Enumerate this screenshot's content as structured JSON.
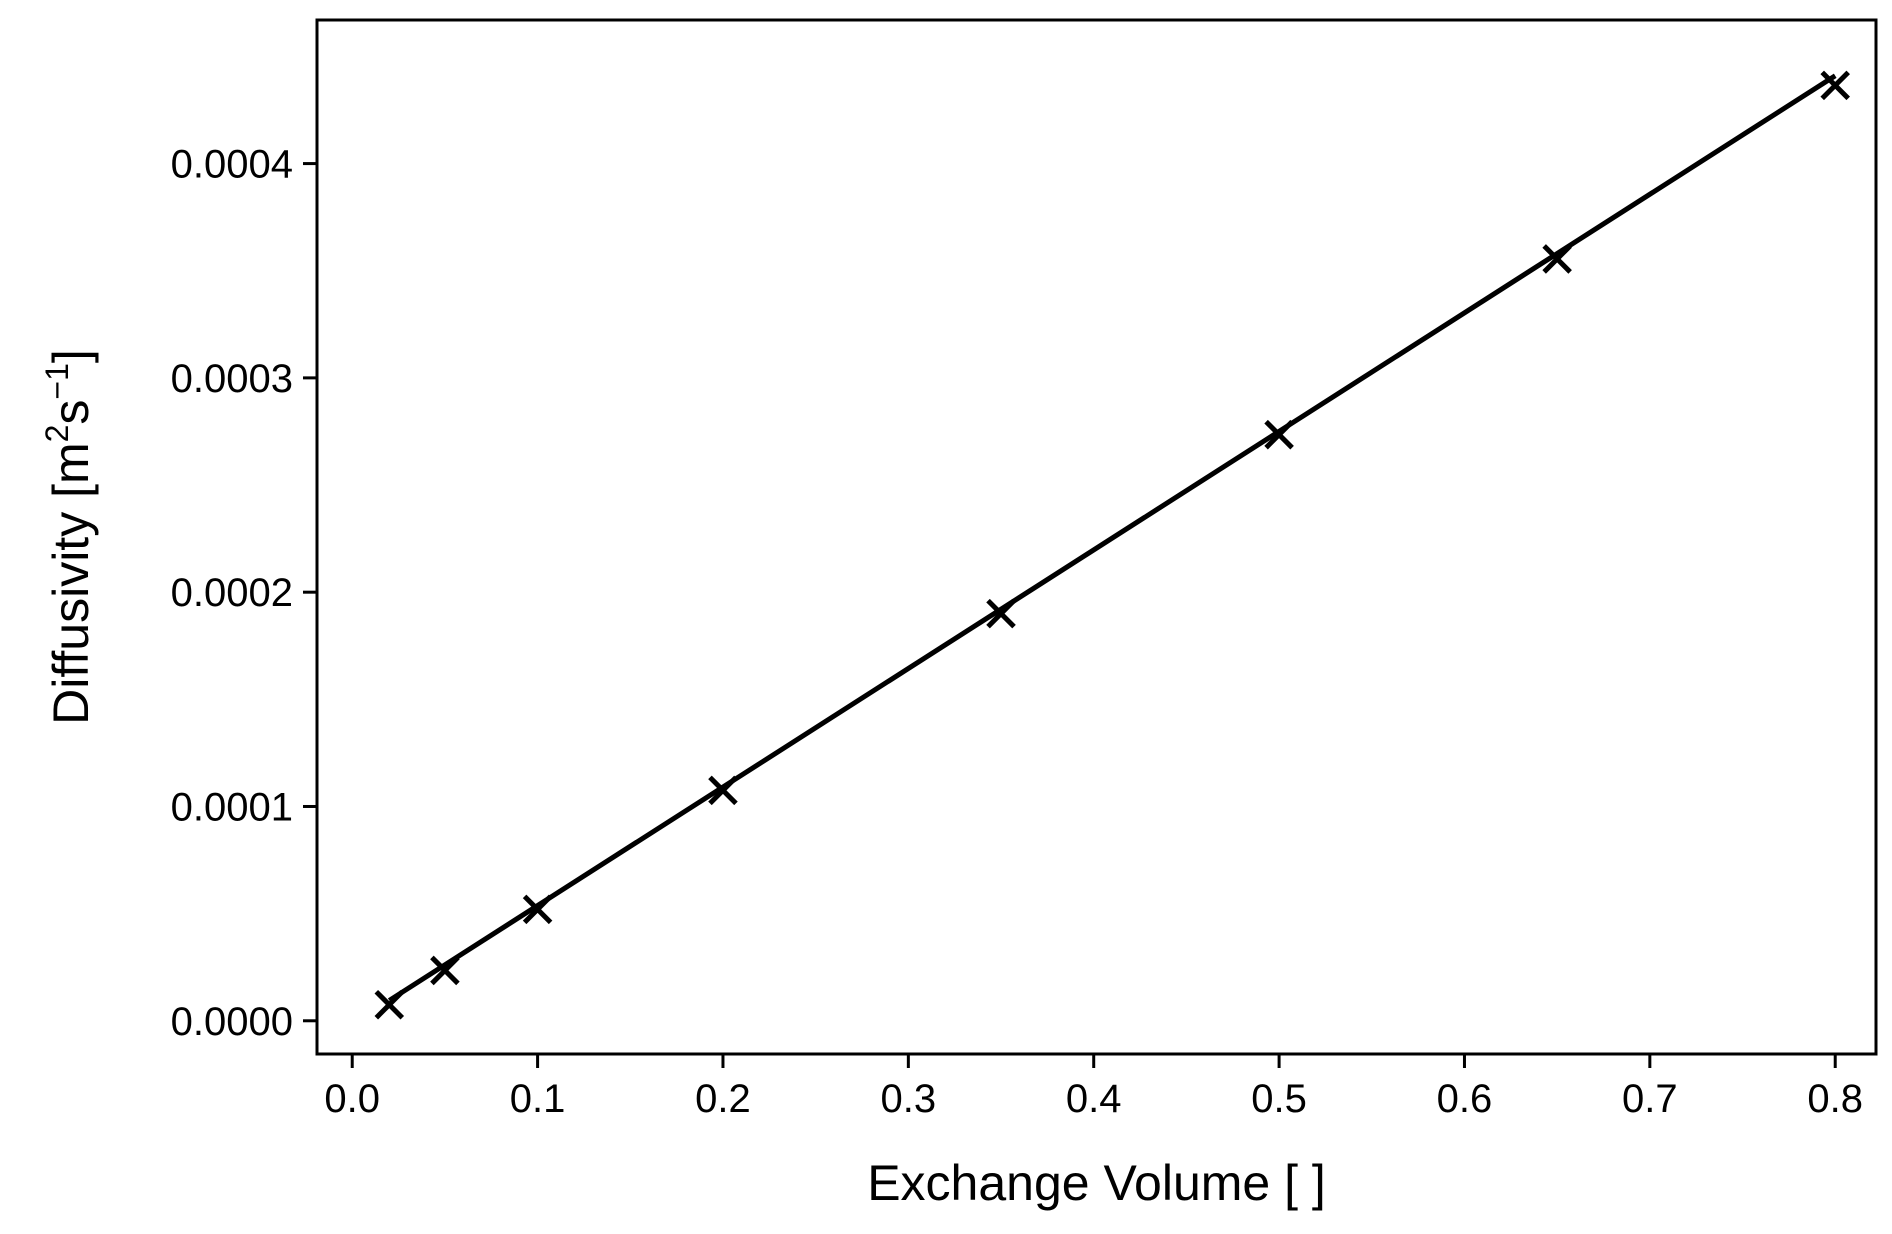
{
  "chart_data": {
    "type": "scatter",
    "title": "",
    "xlabel": "Exchange Volume [ ]",
    "ylabel": {
      "prefix": "Diffusivity [m",
      "sup1": "2",
      "mid": "s",
      "sup2": "−1",
      "suffix": "]"
    },
    "xlim": [
      -0.019,
      0.822
    ],
    "ylim": [
      -1.55e-05,
      0.000467
    ],
    "xticks": [
      0.0,
      0.1,
      0.2,
      0.3,
      0.4,
      0.5,
      0.6,
      0.7,
      0.8
    ],
    "xtick_labels": [
      "0.0",
      "0.1",
      "0.2",
      "0.3",
      "0.4",
      "0.5",
      "0.6",
      "0.7",
      "0.8"
    ],
    "yticks": [
      0.0,
      0.0001,
      0.0002,
      0.0003,
      0.0004
    ],
    "ytick_labels": [
      "0.0000",
      "0.0001",
      "0.0002",
      "0.0003",
      "0.0004"
    ],
    "grid": false,
    "series": [
      {
        "marker": "x",
        "color": "#000000",
        "x": [
          0.02,
          0.05,
          0.1,
          0.2,
          0.35,
          0.5,
          0.65,
          0.8
        ],
        "y": [
          7.5e-06,
          2.35e-05,
          5.2e-05,
          0.0001075,
          0.00019,
          0.0002735,
          0.0003555,
          0.0004365
        ]
      },
      {
        "type": "line",
        "color": "#000000",
        "x": [
          0.02,
          0.8
        ],
        "y": [
          9.5e-06,
          0.000441
        ]
      }
    ]
  }
}
